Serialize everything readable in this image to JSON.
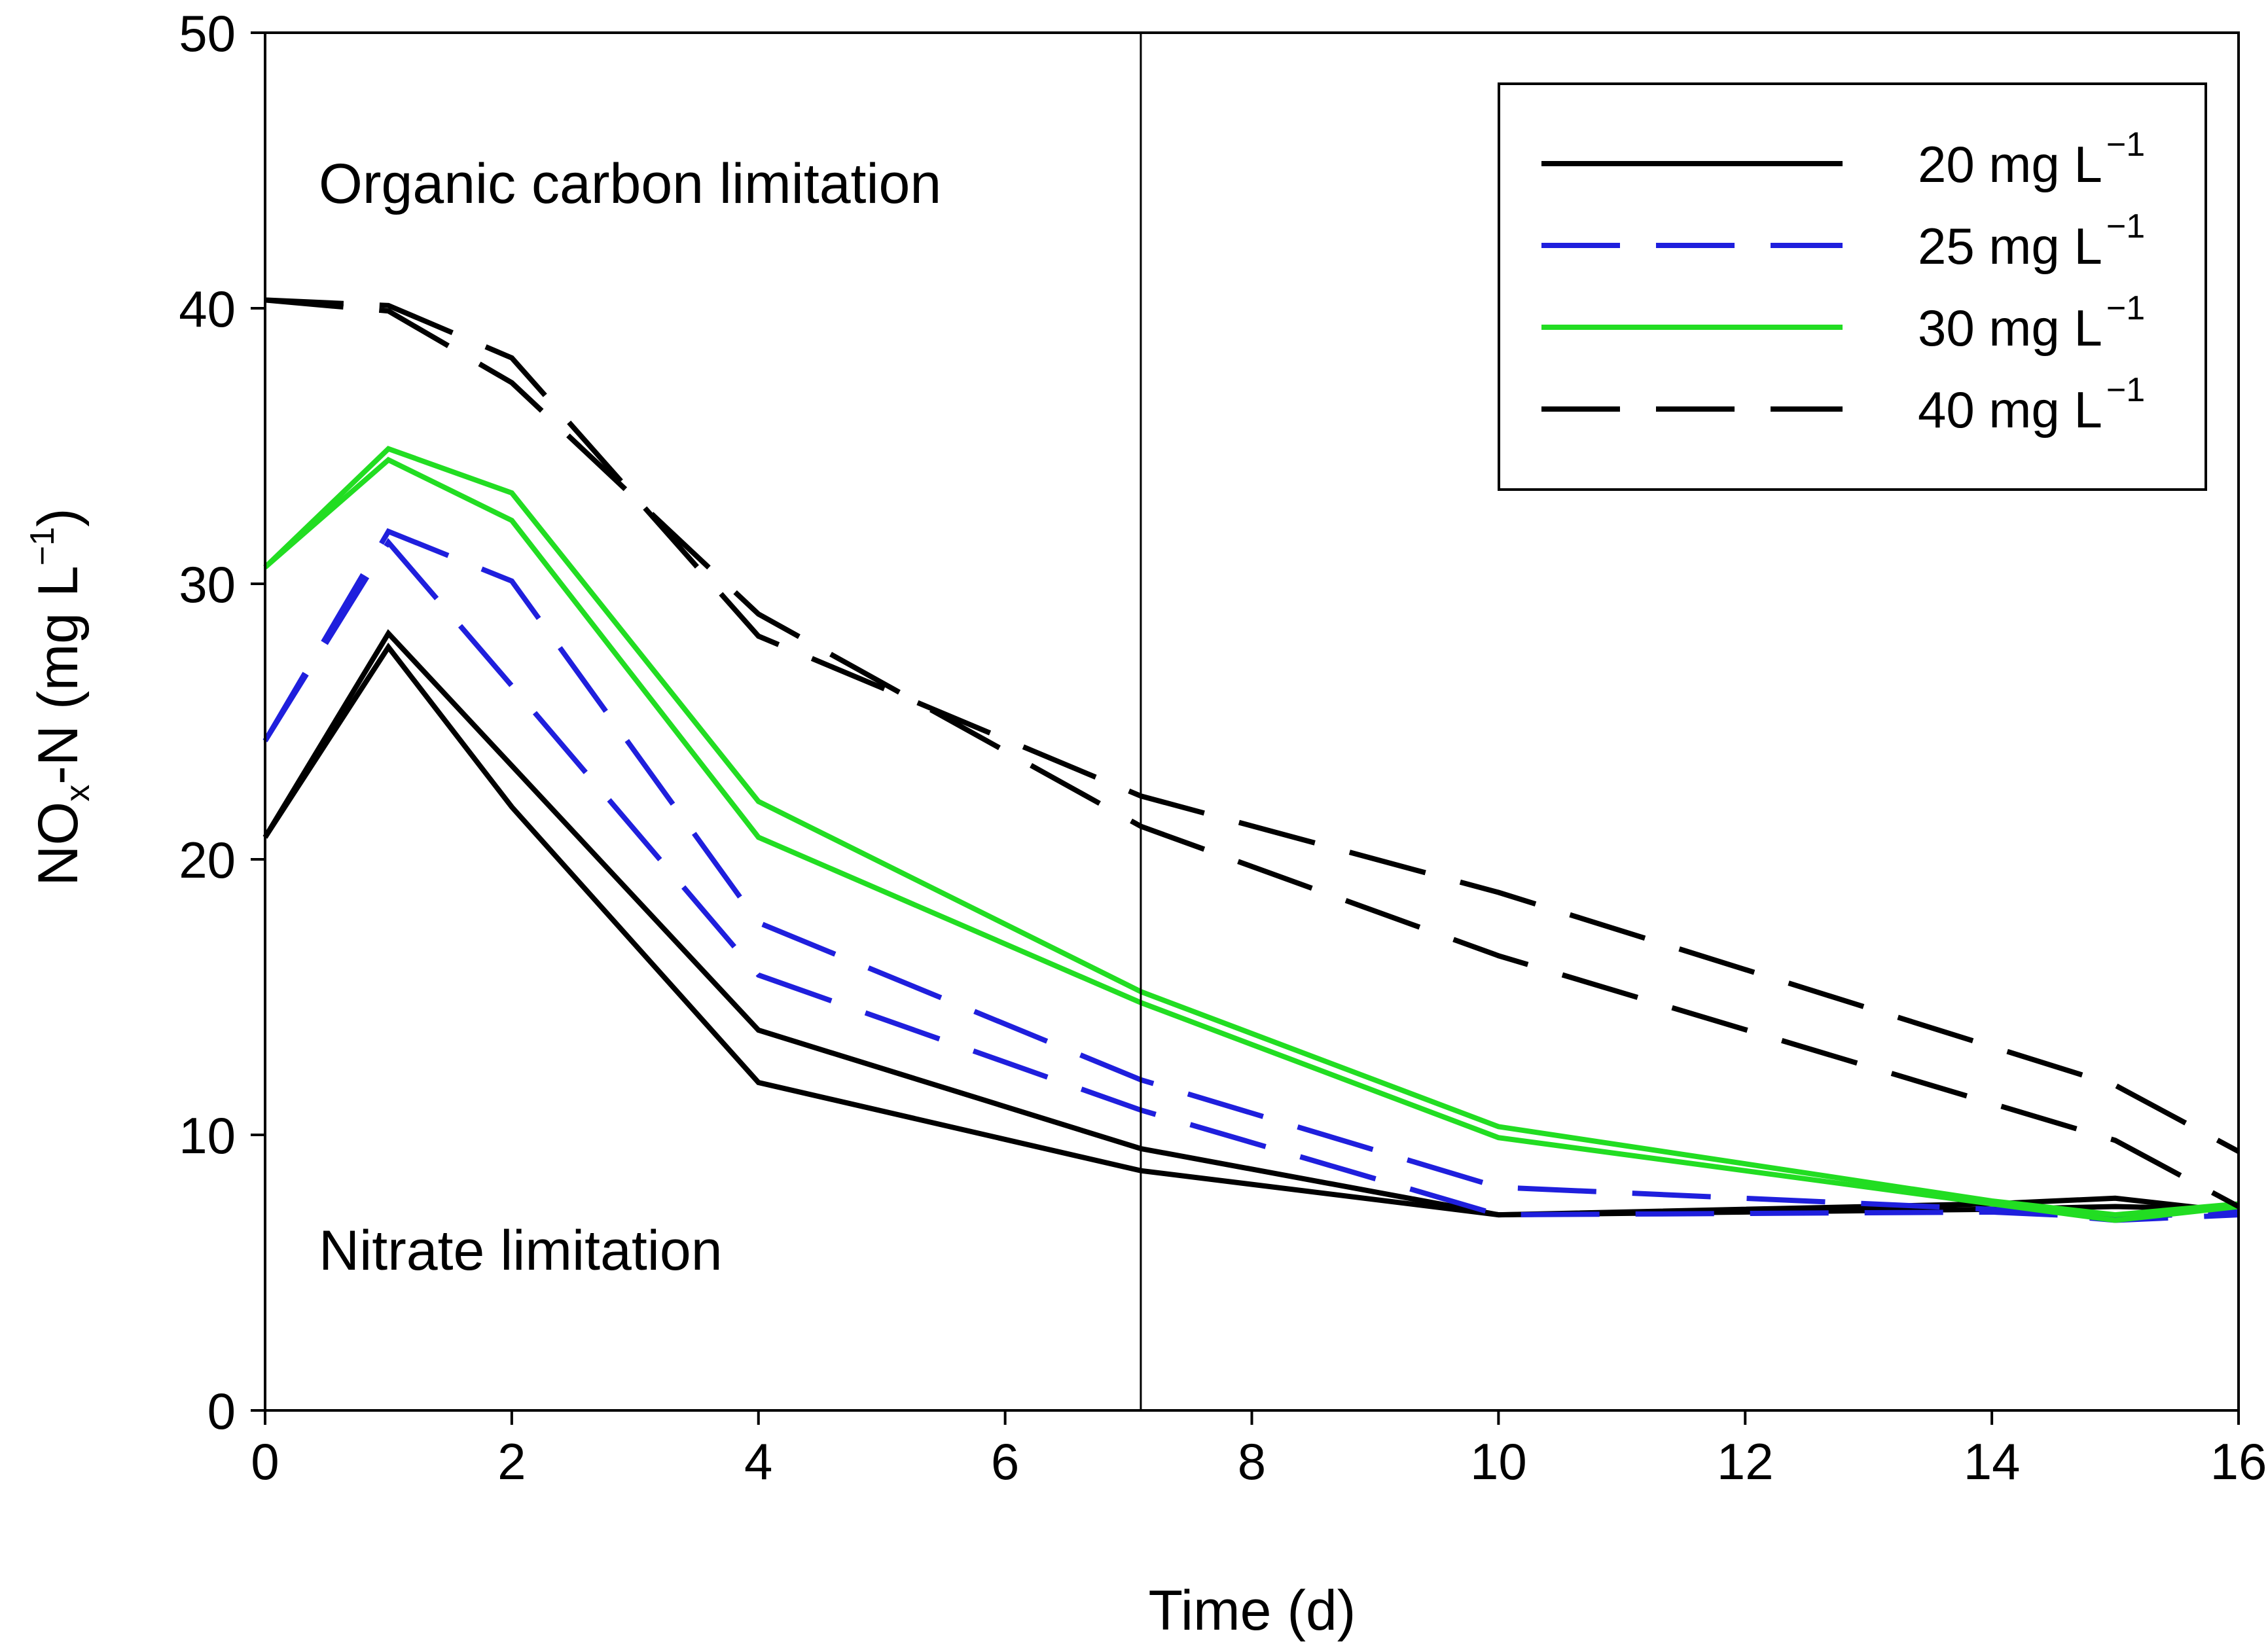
{
  "chart_data": {
    "type": "line",
    "xlabel": "Time (d)",
    "ylabel": {
      "base": "NO",
      "sub": "x",
      "rest": "-N (mg L",
      "sup": "−1",
      "close": ")"
    },
    "xlim": [
      0,
      16
    ],
    "ylim": [
      0,
      50
    ],
    "xticks": [
      "0",
      "2",
      "4",
      "6",
      "8",
      "10",
      "12",
      "14",
      "16"
    ],
    "yticks": [
      "0",
      "10",
      "20",
      "30",
      "40",
      "50"
    ],
    "vline_x": 7.1,
    "annotations": {
      "upper": "Organic carbon limitation",
      "lower": "Nitrate limitation"
    },
    "legend": {
      "position": "top-right",
      "entries": [
        {
          "label": "20 mg L",
          "sup": "−1",
          "color": "#000000",
          "dash": "solid"
        },
        {
          "label": "25 mg L",
          "sup": "−1",
          "color": "#1f1fdd",
          "dash": "dashed"
        },
        {
          "label": "30 mg L",
          "sup": "−1",
          "color": "#22dd22",
          "dash": "solid"
        },
        {
          "label": "40 mg L",
          "sup": "−1",
          "color": "#000000",
          "dash": "dashed"
        }
      ]
    },
    "series": [
      {
        "name": "20 mg L-1 (a)",
        "group": 0,
        "x": [
          0,
          1,
          2,
          4,
          7.1,
          10,
          14,
          15,
          16
        ],
        "y": [
          20.8,
          28.2,
          23.4,
          13.8,
          9.5,
          7.1,
          7.5,
          7.7,
          7.2
        ]
      },
      {
        "name": "20 mg L-1 (b)",
        "group": 0,
        "x": [
          0,
          1,
          2,
          4,
          7.1,
          10,
          14,
          15,
          16
        ],
        "y": [
          20.8,
          27.7,
          21.9,
          11.9,
          8.7,
          7.1,
          7.3,
          7.4,
          7.3
        ]
      },
      {
        "name": "25 mg L-1 (a)",
        "group": 1,
        "x": [
          0,
          1,
          2,
          4,
          7.1,
          10,
          14,
          15,
          16
        ],
        "y": [
          24.3,
          31.9,
          30.1,
          17.7,
          12.0,
          8.1,
          7.3,
          6.9,
          7.1
        ]
      },
      {
        "name": "25 mg L-1 (b)",
        "group": 1,
        "x": [
          0,
          1,
          2,
          4,
          7.1,
          10,
          14,
          15,
          16
        ],
        "y": [
          24.3,
          31.5,
          26.3,
          15.8,
          10.9,
          7.1,
          7.2,
          7.0,
          7.2
        ]
      },
      {
        "name": "30 mg L-1 (a)",
        "group": 2,
        "x": [
          0,
          1,
          2,
          4,
          7.1,
          10,
          14,
          15,
          16
        ],
        "y": [
          30.6,
          34.9,
          33.3,
          22.1,
          15.2,
          10.3,
          7.6,
          7.1,
          7.5
        ]
      },
      {
        "name": "30 mg L-1 (b)",
        "group": 2,
        "x": [
          0,
          1,
          2,
          4,
          7.1,
          10,
          14,
          15,
          16
        ],
        "y": [
          30.6,
          34.5,
          32.3,
          20.8,
          14.8,
          9.9,
          7.5,
          6.9,
          7.4
        ]
      },
      {
        "name": "40 mg L-1 (a)",
        "group": 3,
        "x": [
          0,
          1,
          2,
          4,
          7.1,
          10,
          15,
          16
        ],
        "y": [
          40.3,
          40.1,
          38.2,
          28.1,
          22.3,
          18.8,
          11.8,
          9.4
        ]
      },
      {
        "name": "40 mg L-1 (b)",
        "group": 3,
        "x": [
          0,
          1,
          2,
          4,
          7.1,
          10,
          15,
          16
        ],
        "y": [
          40.3,
          39.9,
          37.3,
          28.9,
          21.2,
          16.5,
          9.8,
          7.4
        ]
      }
    ]
  }
}
